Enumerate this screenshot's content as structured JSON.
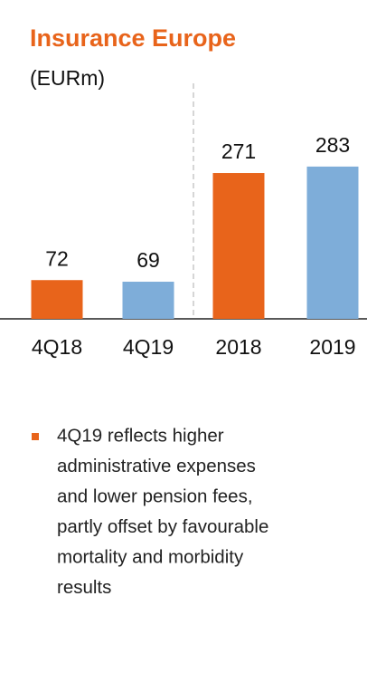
{
  "chart_data": {
    "type": "bar",
    "title": "Insurance Europe",
    "subtitle": "(EURm)",
    "categories": [
      "4Q18",
      "4Q19",
      "2018",
      "2019"
    ],
    "values": [
      72,
      69,
      271,
      283
    ],
    "colors": [
      "#e8641b",
      "#7eadd9",
      "#e8641b",
      "#7eadd9"
    ]
  },
  "note": {
    "lines": [
      "4Q19 reflects higher",
      "administrative expenses",
      "and lower pension fees,",
      "partly offset by favourable",
      "mortality and morbidity",
      "results"
    ]
  }
}
